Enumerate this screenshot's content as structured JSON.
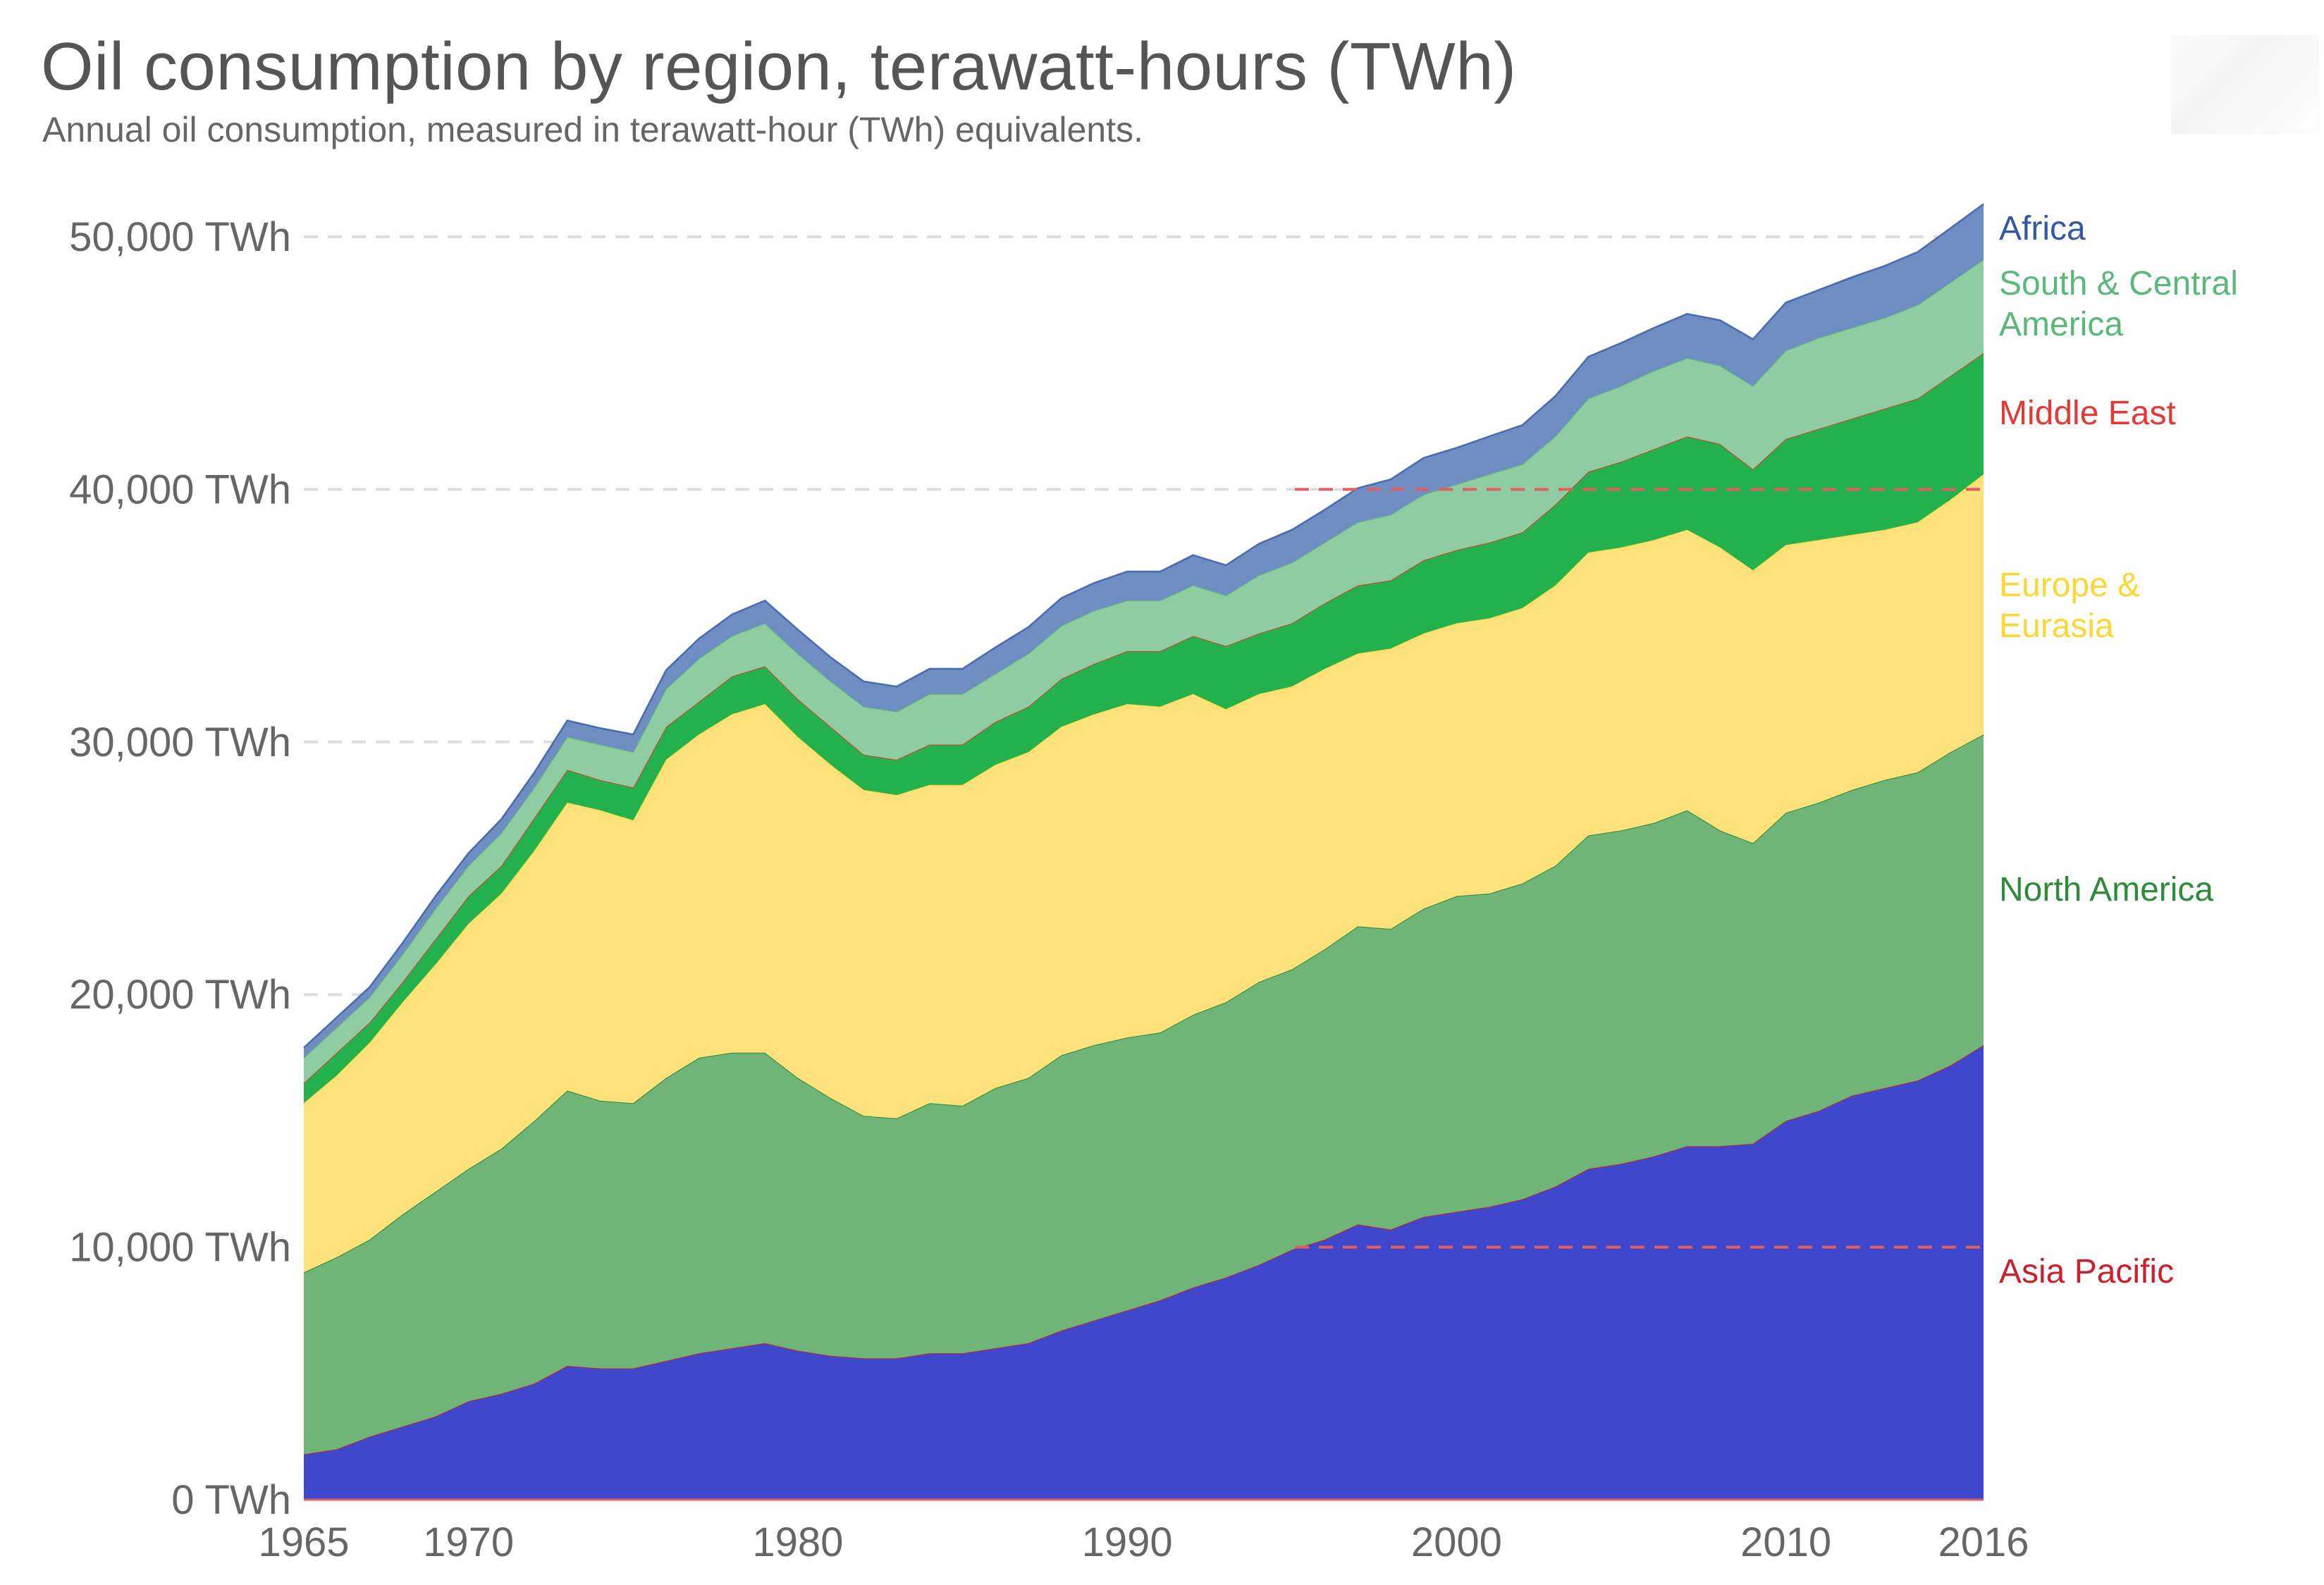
{
  "chart_data": {
    "type": "area",
    "stacked": true,
    "title": "Oil consumption by region, terawatt-hours (TWh)",
    "subtitle": "Annual oil consumption, measured in terawatt-hour (TWh) equivalents.",
    "xlabel": "",
    "ylabel": "",
    "unit": "TWh",
    "xlim": [
      1965,
      2016
    ],
    "ylim": [
      0,
      50000
    ],
    "grid": true,
    "legend_placement": "right (inline labels at series end)",
    "x_ticks": [
      "1965",
      "1970",
      "1980",
      "1990",
      "2000",
      "2010",
      "2016"
    ],
    "y_ticks": [
      "0 TWh",
      "10,000 TWh",
      "20,000 TWh",
      "30,000 TWh",
      "40,000 TWh",
      "50,000 TWh"
    ],
    "x": [
      1965,
      1966,
      1967,
      1968,
      1969,
      1970,
      1971,
      1972,
      1973,
      1974,
      1975,
      1976,
      1977,
      1978,
      1979,
      1980,
      1981,
      1982,
      1983,
      1984,
      1985,
      1986,
      1987,
      1988,
      1989,
      1990,
      1991,
      1992,
      1993,
      1994,
      1995,
      1996,
      1997,
      1998,
      1999,
      2000,
      2001,
      2002,
      2003,
      2004,
      2005,
      2006,
      2007,
      2008,
      2009,
      2010,
      2011,
      2012,
      2013,
      2014,
      2015,
      2016
    ],
    "series": [
      {
        "name": "Asia Pacific",
        "fill": "#3f48cc",
        "label_color": "#c8232c",
        "values": [
          1800,
          2000,
          2500,
          2900,
          3300,
          3900,
          4200,
          4600,
          5300,
          5200,
          5200,
          5500,
          5800,
          6000,
          6200,
          5900,
          5700,
          5600,
          5600,
          5800,
          5800,
          6000,
          6200,
          6700,
          7100,
          7500,
          7900,
          8400,
          8800,
          9300,
          9900,
          10300,
          10900,
          10700,
          11200,
          11400,
          11600,
          11900,
          12400,
          13100,
          13300,
          13600,
          14000,
          14000,
          14100,
          15000,
          15400,
          16000,
          16300,
          16600,
          17200,
          18000
        ]
      },
      {
        "name": "North America",
        "fill": "#6fb577",
        "label_color": "#2e8b3a",
        "values": [
          7200,
          7600,
          7800,
          8400,
          8900,
          9200,
          9700,
          10400,
          10900,
          10600,
          10500,
          11200,
          11700,
          11700,
          11500,
          10800,
          10200,
          9600,
          9500,
          9900,
          9800,
          10300,
          10500,
          10900,
          10900,
          10800,
          10600,
          10800,
          10900,
          11200,
          11100,
          11500,
          11800,
          11900,
          12200,
          12500,
          12400,
          12500,
          12700,
          13200,
          13200,
          13200,
          13300,
          12500,
          11900,
          12200,
          12200,
          12100,
          12200,
          12200,
          12400,
          12300
        ]
      },
      {
        "name": "Europe & Eurasia",
        "fill": "#fde17a",
        "label_color": "#fdd835",
        "values": [
          6700,
          7200,
          7800,
          8400,
          9000,
          9700,
          10100,
          10700,
          11400,
          11500,
          11200,
          12600,
          12800,
          13400,
          13800,
          13500,
          13200,
          12900,
          12800,
          12600,
          12700,
          12800,
          12900,
          13000,
          13100,
          13200,
          12900,
          12700,
          11600,
          11400,
          11200,
          11100,
          10800,
          11100,
          10900,
          10800,
          10900,
          10900,
          11100,
          11200,
          11200,
          11200,
          11100,
          11200,
          10800,
          10600,
          10400,
          10100,
          9900,
          9900,
          10000,
          10300
        ]
      },
      {
        "name": "Middle East",
        "fill": "#22b14c",
        "label_color": "#e53935",
        "values": [
          800,
          900,
          800,
          800,
          1000,
          1100,
          1100,
          1300,
          1300,
          1200,
          1300,
          1300,
          1300,
          1500,
          1500,
          1500,
          1500,
          1400,
          1400,
          1600,
          1600,
          1700,
          1800,
          1900,
          2000,
          2100,
          2200,
          2300,
          2500,
          2400,
          2500,
          2600,
          2700,
          2700,
          2900,
          2900,
          3000,
          3000,
          3200,
          3200,
          3400,
          3600,
          3700,
          4100,
          4000,
          4200,
          4400,
          4600,
          4800,
          4900,
          4900,
          4800
        ]
      },
      {
        "name": "South & Central America",
        "fill": "#8fcca2",
        "label_color": "#5cb87a",
        "values": [
          1000,
          1000,
          1000,
          1100,
          1200,
          1200,
          1300,
          1200,
          1300,
          1400,
          1400,
          1500,
          1700,
          1600,
          1700,
          1800,
          1800,
          1900,
          1900,
          2000,
          2000,
          1900,
          2100,
          2100,
          2100,
          2000,
          2000,
          2000,
          2000,
          2300,
          2400,
          2400,
          2500,
          2600,
          2600,
          2600,
          2700,
          2700,
          2700,
          2900,
          3000,
          3100,
          3100,
          3100,
          3300,
          3500,
          3600,
          3600,
          3600,
          3700,
          3700,
          3700
        ]
      },
      {
        "name": "Africa",
        "fill": "#6e8ec2",
        "label_color": "#3358a8",
        "values": [
          400,
          400,
          400,
          450,
          500,
          500,
          550,
          600,
          650,
          650,
          700,
          750,
          800,
          850,
          900,
          950,
          950,
          1000,
          1000,
          1000,
          1000,
          1050,
          1050,
          1100,
          1100,
          1150,
          1150,
          1200,
          1200,
          1250,
          1300,
          1300,
          1350,
          1400,
          1450,
          1450,
          1500,
          1550,
          1600,
          1650,
          1700,
          1700,
          1750,
          1800,
          1850,
          1900,
          1900,
          2000,
          2050,
          2100,
          2150,
          2200
        ]
      }
    ],
    "annotations": [
      {
        "text": "dashed reference line",
        "value": 10000,
        "color": "#e06060"
      },
      {
        "text": "dashed reference line",
        "value": 40000,
        "color": "#e06060"
      }
    ]
  },
  "labels": {
    "africa": "Africa",
    "sca_line1": "South & Central",
    "sca_line2": "America",
    "middle_east": "Middle East",
    "europe_line1": "Europe &",
    "europe_line2": "Eurasia",
    "north_america": "North America",
    "asia_pacific": "Asia Pacific"
  }
}
